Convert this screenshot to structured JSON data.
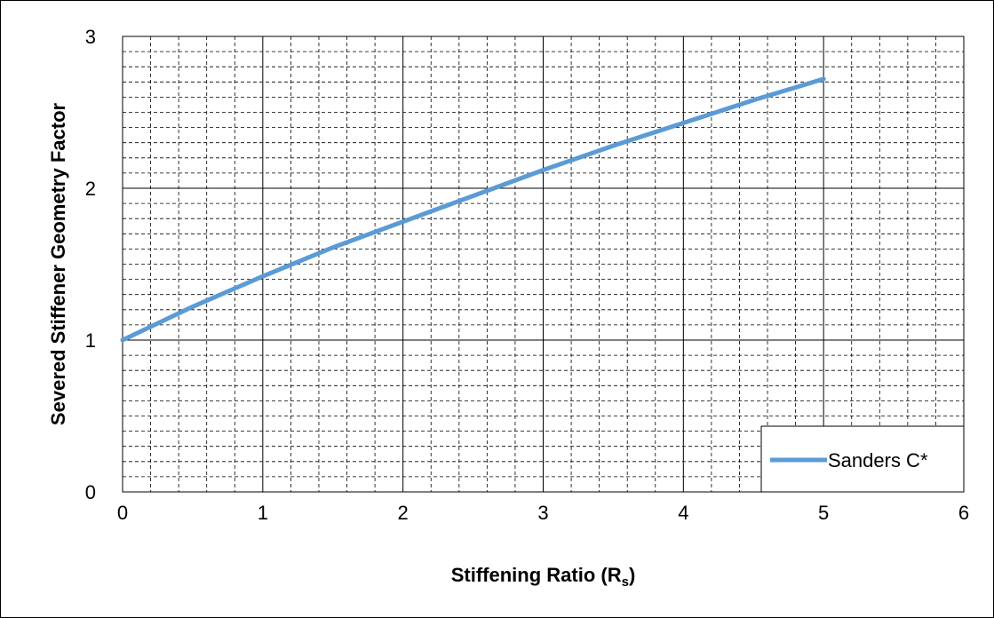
{
  "chart_data": {
    "type": "line",
    "title": "",
    "xlabel": "Stiffening Ratio (R",
    "xlabel_subscript": "s",
    "xlabel_suffix": ")",
    "ylabel": "Severed Stiffener Geometry Factor",
    "xlim": [
      0,
      6
    ],
    "ylim": [
      0,
      3
    ],
    "x_ticks": [
      0,
      1,
      2,
      3,
      4,
      5,
      6
    ],
    "y_ticks": [
      0,
      1,
      2,
      3
    ],
    "x_minor_step": 0.2,
    "y_minor_step": 0.1,
    "grid": {
      "major": true,
      "minor": true,
      "minor_style": "dashed"
    },
    "legend": {
      "placement": "bottom-right",
      "entries": [
        "Sanders C*"
      ]
    },
    "series": [
      {
        "name": "Sanders C*",
        "color": "#5B9BD5",
        "x": [
          0,
          0.5,
          1,
          1.5,
          2,
          2.5,
          3,
          3.5,
          4,
          4.5,
          5
        ],
        "y": [
          1.0,
          1.22,
          1.42,
          1.61,
          1.78,
          1.95,
          2.12,
          2.28,
          2.43,
          2.58,
          2.72
        ]
      }
    ]
  }
}
